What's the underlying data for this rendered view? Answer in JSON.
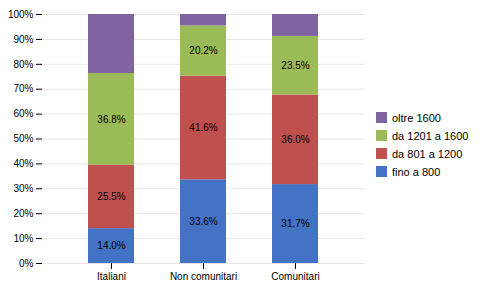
{
  "chart_data": {
    "type": "bar",
    "stacked": true,
    "categories": [
      "Italiani",
      "Non comunitari",
      "Comunitari"
    ],
    "series": [
      {
        "name": "fino a 800",
        "color": "#4472C4",
        "values": [
          14.0,
          33.6,
          31.7
        ],
        "data_labels": true,
        "value_labels": [
          "14.0%",
          "33.6%",
          "31.7%"
        ]
      },
      {
        "name": "da 801 a 1200",
        "color": "#C0504D",
        "values": [
          25.5,
          41.6,
          36.0
        ],
        "data_labels": true,
        "value_labels": [
          "25.5%",
          "41.6%",
          "36.0%"
        ]
      },
      {
        "name": "da 1201 a 1600",
        "color": "#9BBB59",
        "values": [
          36.8,
          20.2,
          23.5
        ],
        "data_labels": true,
        "value_labels": [
          "36.8%",
          "20.2%",
          "23.5%"
        ]
      },
      {
        "name": "oltre 1600",
        "color": "#8064A2",
        "values": [
          23.7,
          4.6,
          8.8
        ],
        "data_labels": false
      }
    ],
    "ylim": [
      0,
      100
    ],
    "yticks": [
      {
        "value": 0,
        "label": "0%"
      },
      {
        "value": 10,
        "label": "10%"
      },
      {
        "value": 20,
        "label": "20%"
      },
      {
        "value": 30,
        "label": "30%"
      },
      {
        "value": 40,
        "label": "40%"
      },
      {
        "value": 50,
        "label": "50%"
      },
      {
        "value": 60,
        "label": "60%"
      },
      {
        "value": 70,
        "label": "70%"
      },
      {
        "value": 80,
        "label": "80%"
      },
      {
        "value": 90,
        "label": "90%"
      },
      {
        "value": 100,
        "label": "100%"
      }
    ],
    "grid": true,
    "legend": "right"
  }
}
